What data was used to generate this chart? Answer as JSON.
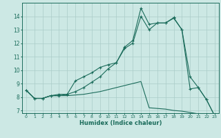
{
  "xlabel": "Humidex (Indice chaleur)",
  "background_color": "#cce8e4",
  "grid_color": "#aaccc8",
  "line_color": "#1a6b5a",
  "xlim": [
    -0.5,
    23.5
  ],
  "ylim": [
    6.8,
    15.0
  ],
  "xtick_labels": [
    "0",
    "1",
    "2",
    "3",
    "4",
    "5",
    "6",
    "7",
    "8",
    "9",
    "10",
    "11",
    "12",
    "13",
    "14",
    "15",
    "16",
    "17",
    "18",
    "19",
    "20",
    "21",
    "22",
    "23"
  ],
  "ytick_labels": [
    "7",
    "8",
    "9",
    "10",
    "11",
    "12",
    "13",
    "14"
  ],
  "ytick_vals": [
    7,
    8,
    9,
    10,
    11,
    12,
    13,
    14
  ],
  "line1_x": [
    0,
    1,
    2,
    3,
    4,
    5,
    6,
    7,
    8,
    9,
    10,
    11,
    12,
    13,
    14,
    15,
    16,
    17,
    18,
    19,
    20,
    21,
    22,
    23
  ],
  "line1_y": [
    8.5,
    7.9,
    7.9,
    8.1,
    8.2,
    8.2,
    9.2,
    9.5,
    9.8,
    10.2,
    10.4,
    10.55,
    11.7,
    12.2,
    14.6,
    13.4,
    13.5,
    13.5,
    13.9,
    13.0,
    8.6,
    8.7,
    7.8,
    6.6
  ],
  "line2_x": [
    0,
    1,
    2,
    3,
    4,
    5,
    6,
    7,
    8,
    9,
    10,
    11,
    12,
    13,
    14,
    15,
    16,
    17,
    18,
    19,
    20,
    21,
    22,
    23
  ],
  "line2_y": [
    8.5,
    7.9,
    7.9,
    8.1,
    8.1,
    8.1,
    8.15,
    8.2,
    8.3,
    8.4,
    8.55,
    8.7,
    8.85,
    9.0,
    9.15,
    7.2,
    7.15,
    7.1,
    7.0,
    6.95,
    6.85,
    6.75,
    6.65,
    6.55
  ],
  "line3_x": [
    0,
    1,
    2,
    3,
    4,
    5,
    6,
    7,
    8,
    9,
    10,
    11,
    12,
    13,
    14,
    15,
    16,
    17,
    18,
    19,
    20,
    21,
    22,
    23
  ],
  "line3_y": [
    8.5,
    7.9,
    7.9,
    8.1,
    8.1,
    8.2,
    8.4,
    8.7,
    9.1,
    9.5,
    10.1,
    10.55,
    11.6,
    12.0,
    14.0,
    13.0,
    13.5,
    13.5,
    13.85,
    13.0,
    9.5,
    8.7,
    7.8,
    6.6
  ]
}
